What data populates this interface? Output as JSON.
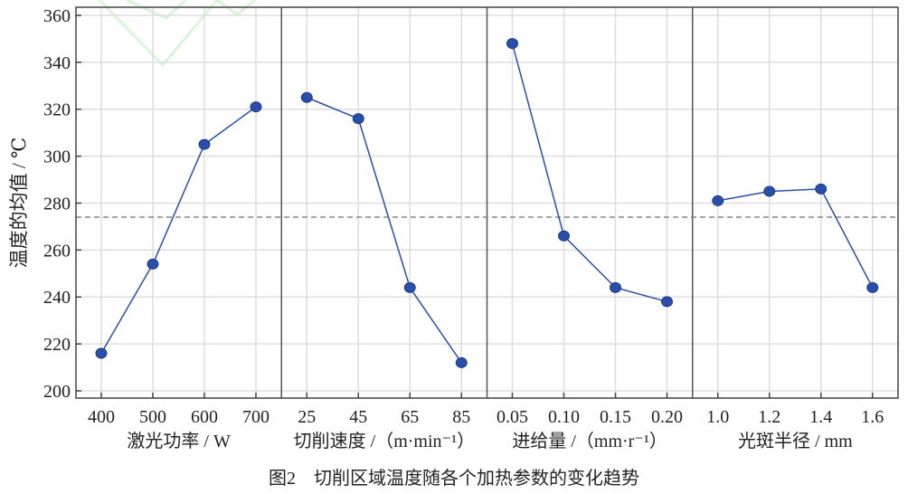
{
  "caption": "图2　切削区域温度随各个加热参数的变化趋势",
  "chart_data": {
    "type": "line",
    "ylabel": "温度的均值 / ℃",
    "ylim": [
      196,
      364
    ],
    "yticks": [
      200,
      220,
      240,
      260,
      280,
      300,
      320,
      340,
      360
    ],
    "grid": true,
    "reference_line": 274,
    "colors": {
      "series": "#2a4fa8",
      "reference": "#888888",
      "grid": "#dddddd"
    },
    "panels": [
      {
        "xlabel": "激光功率  / W",
        "categories": [
          "400",
          "500",
          "600",
          "700"
        ],
        "values": [
          216,
          254,
          305,
          321
        ]
      },
      {
        "xlabel": "切削速度 /（m·min⁻¹）",
        "categories": [
          "25",
          "45",
          "65",
          "85"
        ],
        "values": [
          325,
          316,
          244,
          212
        ]
      },
      {
        "xlabel": "进给量 /（mm·r⁻¹）",
        "categories": [
          "0.05",
          "0.10",
          "0.15",
          "0.20"
        ],
        "values": [
          348,
          266,
          244,
          238
        ]
      },
      {
        "xlabel": "光斑半径  / mm",
        "categories": [
          "1.0",
          "1.2",
          "1.4",
          "1.6"
        ],
        "values": [
          281,
          285,
          286,
          244
        ]
      }
    ]
  }
}
